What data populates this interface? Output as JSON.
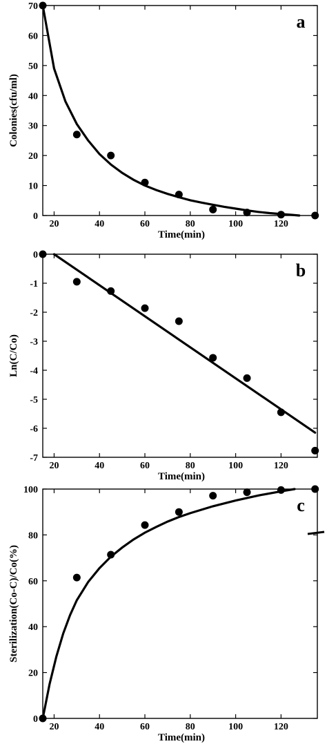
{
  "chart_data": [
    {
      "type": "scatter",
      "panel_label": "a",
      "xlabel": "Time(min)",
      "ylabel": "Colonies(cfu/ml)",
      "xlim": [
        15,
        136
      ],
      "ylim": [
        0,
        70
      ],
      "xticks": [
        20,
        40,
        60,
        80,
        100,
        120
      ],
      "yticks": [
        0,
        10,
        20,
        30,
        40,
        50,
        60,
        70
      ],
      "series": [
        {
          "x": [
            15,
            30,
            45,
            60,
            75,
            90,
            105,
            120,
            135
          ],
          "y": [
            70,
            27,
            20,
            11,
            7,
            2,
            1,
            0.3,
            0
          ]
        }
      ],
      "fit": {
        "x": [
          15,
          20,
          25,
          30,
          35,
          40,
          45,
          50,
          55,
          60,
          65,
          70,
          75,
          80,
          85,
          90,
          95,
          100,
          105,
          110,
          115,
          120,
          125,
          128
        ],
        "y": [
          70,
          49,
          38,
          30.5,
          25,
          20.5,
          17,
          14.2,
          11.9,
          10,
          8.5,
          7.2,
          6.1,
          5.1,
          4.3,
          3.6,
          2.9,
          2.3,
          1.7,
          1.2,
          0.8,
          0.5,
          0.2,
          0
        ]
      }
    },
    {
      "type": "scatter",
      "panel_label": "b",
      "xlabel": "Time(min)",
      "ylabel": "Ln(C/Co)",
      "xlim": [
        15,
        136
      ],
      "ylim": [
        -7,
        0
      ],
      "xticks": [
        20,
        40,
        60,
        80,
        100,
        120
      ],
      "yticks": [
        0,
        -1,
        -2,
        -3,
        -4,
        -5,
        -6,
        -7
      ],
      "series": [
        {
          "x": [
            15,
            30,
            45,
            60,
            75,
            90,
            105,
            120,
            135
          ],
          "y": [
            0,
            -0.95,
            -1.27,
            -1.86,
            -2.31,
            -3.57,
            -4.27,
            -5.45,
            -6.77
          ]
        }
      ],
      "fit": {
        "x": [
          20,
          135
        ],
        "y": [
          0,
          -6.15
        ]
      }
    },
    {
      "type": "scatter",
      "panel_label": "c",
      "xlabel": "Time(min)",
      "ylabel": "Sterilization(Co-C)/Co(%)",
      "xlim": [
        15,
        136
      ],
      "ylim": [
        0,
        100
      ],
      "xticks": [
        20,
        40,
        60,
        80,
        100,
        120
      ],
      "yticks": [
        0,
        20,
        40,
        60,
        80,
        100
      ],
      "series": [
        {
          "x": [
            15,
            30,
            45,
            60,
            75,
            90,
            105,
            120,
            135
          ],
          "y": [
            0,
            61.4,
            71.4,
            84.3,
            90,
            97.1,
            98.6,
            99.6,
            100
          ]
        }
      ],
      "fit": {
        "x": [
          15,
          18,
          21,
          24,
          27,
          30,
          35,
          40,
          45,
          50,
          55,
          60,
          65,
          70,
          75,
          80,
          90,
          100,
          110,
          120,
          126
        ],
        "y": [
          0,
          15,
          27,
          37,
          45,
          51.5,
          59.5,
          65.5,
          70.5,
          74.5,
          78,
          81,
          83.5,
          85.8,
          87.8,
          89.5,
          92.5,
          95,
          97.2,
          99,
          100
        ]
      }
    }
  ]
}
